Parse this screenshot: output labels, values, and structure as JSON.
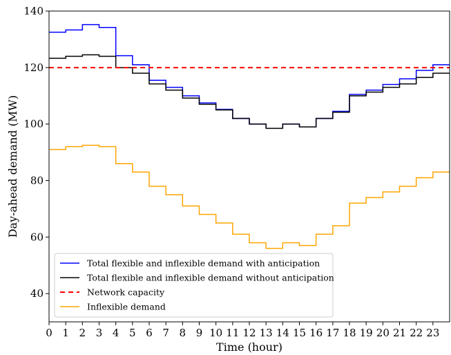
{
  "chart_data": {
    "type": "line",
    "step": "post",
    "xlabel": "Time (hour)",
    "ylabel": "Day-ahead demand (MW)",
    "xlim": [
      0,
      24
    ],
    "ylim": [
      30,
      140
    ],
    "xticks": [
      0,
      1,
      2,
      3,
      4,
      5,
      6,
      7,
      8,
      9,
      10,
      11,
      12,
      13,
      14,
      15,
      16,
      17,
      18,
      19,
      20,
      21,
      22,
      23
    ],
    "yticks": [
      40,
      60,
      80,
      100,
      120,
      140
    ],
    "grid": false,
    "legend_position": "lower-left",
    "series": [
      {
        "name": "Total flexible and inflexible demand with anticipation",
        "color": "#0000ff",
        "style": "solid",
        "x": [
          0,
          1,
          2,
          3,
          4,
          5,
          6,
          7,
          8,
          9,
          10,
          11,
          12,
          13,
          14,
          15,
          16,
          17,
          18,
          19,
          20,
          21,
          22,
          23
        ],
        "values": [
          132.5,
          133.3,
          135.2,
          134.2,
          124.2,
          121.0,
          115.5,
          113.0,
          110.0,
          107.5,
          105.2,
          102.0,
          100.0,
          98.5,
          100.0,
          99.0,
          102.0,
          104.5,
          110.5,
          112.0,
          114.0,
          116.0,
          119.0,
          121.0
        ]
      },
      {
        "name": "Total flexible and inflexible demand without anticipation",
        "color": "#000000",
        "style": "solid",
        "x": [
          0,
          1,
          2,
          3,
          4,
          5,
          6,
          7,
          8,
          9,
          10,
          11,
          12,
          13,
          14,
          15,
          16,
          17,
          18,
          19,
          20,
          21,
          22,
          23
        ],
        "values": [
          123.3,
          124.0,
          124.5,
          124.0,
          120.0,
          118.0,
          114.2,
          112.0,
          109.2,
          107.0,
          105.0,
          102.0,
          100.0,
          98.5,
          100.0,
          99.0,
          102.0,
          104.2,
          110.0,
          111.3,
          113.0,
          114.2,
          116.5,
          118.0
        ]
      },
      {
        "name": "Network capacity",
        "color": "#ff0000",
        "style": "dashed",
        "x": [
          0,
          24
        ],
        "values": [
          120,
          120
        ]
      },
      {
        "name": "Inflexible demand",
        "color": "#ffa500",
        "style": "solid",
        "x": [
          0,
          1,
          2,
          3,
          4,
          5,
          6,
          7,
          8,
          9,
          10,
          11,
          12,
          13,
          14,
          15,
          16,
          17,
          18,
          19,
          20,
          21,
          22,
          23
        ],
        "values": [
          91.0,
          92.0,
          92.5,
          92.0,
          86.0,
          83.0,
          78.0,
          75.0,
          71.0,
          68.0,
          65.0,
          61.0,
          58.0,
          56.0,
          58.0,
          57.0,
          61.0,
          64.0,
          72.0,
          74.0,
          76.0,
          78.0,
          81.0,
          83.0
        ]
      }
    ]
  }
}
